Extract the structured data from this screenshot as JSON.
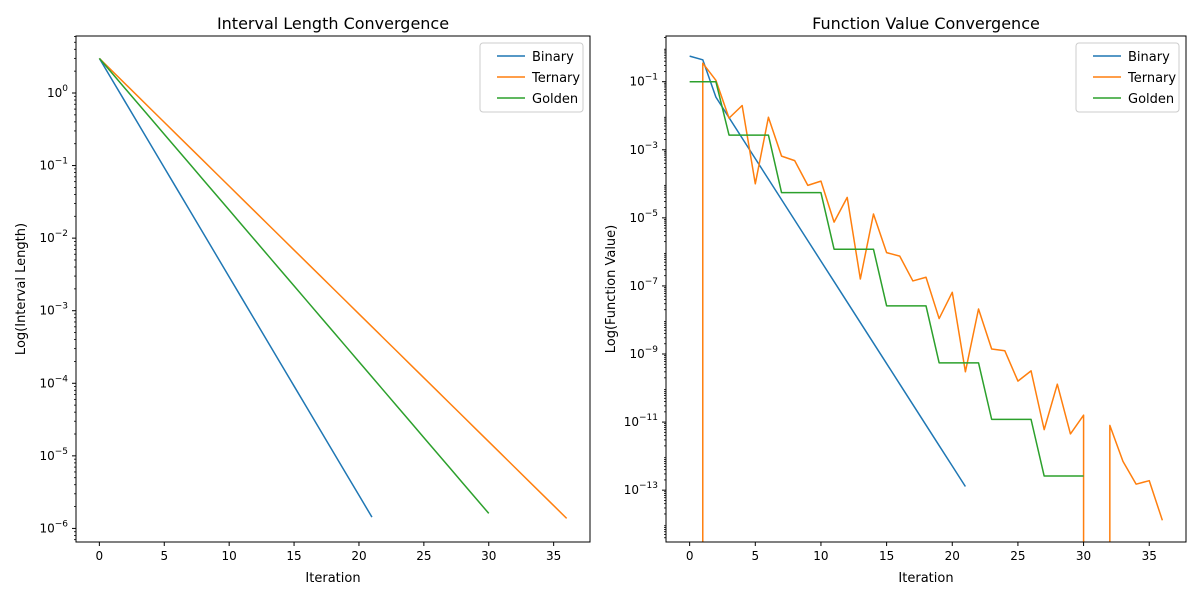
{
  "chart_data": [
    {
      "type": "line",
      "title": "Interval  Length Convergence",
      "xlabel": "Iteration",
      "ylabel": "Log(Interval  Length)",
      "yscale": "log",
      "xlim": [
        -1.8,
        37.8
      ],
      "ylim": [
        6.5e-07,
        6.1
      ],
      "xticks": [
        0,
        5,
        10,
        15,
        20,
        25,
        30,
        35
      ],
      "xtick_labels": [
        "0",
        "5",
        "10",
        "15",
        "20",
        "25",
        "30",
        "35"
      ],
      "yticks": [
        1e-06,
        1e-05,
        0.0001,
        0.001,
        0.01,
        0.1,
        1
      ],
      "ytick_base": "10",
      "ytick_exponents": [
        "−6",
        "−5",
        "−4",
        "−3",
        "−2",
        "−1",
        "0"
      ],
      "grid": false,
      "legend_position": "top-right",
      "series": [
        {
          "name": "Binary",
          "color": "#1f77b4",
          "model": {
            "type": "geometric",
            "start": 3.0,
            "ratio": 0.5,
            "n_last": 21
          }
        },
        {
          "name": "Ternary",
          "color": "#ff7f0e",
          "model": {
            "type": "geometric",
            "start": 3.0,
            "ratio": 0.6667,
            "n_last": 36
          }
        },
        {
          "name": "Golden",
          "color": "#2ca02c",
          "model": {
            "type": "geometric",
            "start": 3.0,
            "ratio": 0.618,
            "n_last": 30
          }
        }
      ]
    },
    {
      "type": "line",
      "title": "Function  Value Convergence",
      "xlabel": "Iteration",
      "ylabel": "Log(Function  Value)",
      "yscale": "log",
      "xlim": [
        -1.8,
        37.8
      ],
      "ylim": [
        3e-15,
        2.2
      ],
      "xticks": [
        0,
        5,
        10,
        15,
        20,
        25,
        30,
        35
      ],
      "xtick_labels": [
        "0",
        "5",
        "10",
        "15",
        "20",
        "25",
        "30",
        "35"
      ],
      "yticks": [
        1e-13,
        1e-11,
        1e-09,
        1e-07,
        1e-05,
        0.001,
        0.1
      ],
      "ytick_base": "10",
      "ytick_exponents": [
        "−13",
        "−11",
        "−9",
        "−7",
        "−5",
        "−3",
        "−1"
      ],
      "grid": false,
      "legend_position": "top-right",
      "series": [
        {
          "name": "Binary",
          "color": "#1f77b4",
          "model": {
            "type": "geometric",
            "start": 0.5625,
            "ratio": 0.25,
            "n_last": 21,
            "overrides": {
              "1": 0.44
            }
          }
        },
        {
          "name": "Ternary",
          "color": "#ff7f0e",
          "x": [
            0,
            1,
            1,
            2,
            3,
            4,
            5,
            6,
            7,
            8,
            9,
            10,
            11,
            12,
            13,
            14,
            15,
            16,
            17,
            18,
            19,
            20,
            21,
            22,
            23,
            24,
            25,
            26,
            27,
            28,
            29,
            30,
            30,
            32,
            32,
            33,
            34,
            35,
            36
          ],
          "y": [
            0,
            0,
            0.35,
            0.11,
            0.0085,
            0.02,
            0.0001,
            0.009,
            0.00065,
            0.00048,
            9e-05,
            0.00012,
            7.5e-06,
            4e-05,
            1.6e-07,
            1.3e-05,
            9.5e-07,
            7.5e-07,
            1.4e-07,
            1.8e-07,
            1.1e-08,
            6.5e-08,
            3e-10,
            2.1e-08,
            1.4e-09,
            1.25e-09,
            1.6e-10,
            3.2e-10,
            6e-12,
            1.3e-10,
            4.5e-12,
            1.6e-11,
            0,
            0,
            8e-12,
            7e-13,
            1.5e-13,
            1.9e-13,
            1.3e-14
          ]
        },
        {
          "name": "Golden",
          "color": "#2ca02c",
          "x": [
            0,
            1,
            2,
            3,
            4,
            5,
            6,
            7,
            8,
            9,
            10,
            11,
            12,
            13,
            14,
            15,
            16,
            17,
            18,
            19,
            20,
            21,
            22,
            23,
            24,
            25,
            26,
            27,
            28,
            29,
            30
          ],
          "y": [
            0.1,
            0.1,
            0.1,
            0.0027,
            0.0027,
            0.0027,
            0.0027,
            5.5e-05,
            5.5e-05,
            5.5e-05,
            5.5e-05,
            1.2e-06,
            1.2e-06,
            1.2e-06,
            1.2e-06,
            2.6e-08,
            2.6e-08,
            2.6e-08,
            2.6e-08,
            5.5e-10,
            5.5e-10,
            5.5e-10,
            5.5e-10,
            1.2e-11,
            1.2e-11,
            1.2e-11,
            1.2e-11,
            2.6e-13,
            2.6e-13,
            2.6e-13,
            2.6e-13
          ]
        }
      ]
    }
  ]
}
